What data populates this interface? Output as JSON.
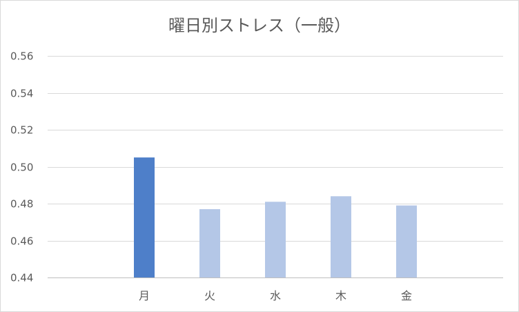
{
  "chart_data": {
    "type": "bar",
    "title": "曜日別ストレス（一般）",
    "xlabel": "",
    "ylabel": "",
    "categories": [
      "月",
      "火",
      "水",
      "木",
      "金"
    ],
    "values": [
      0.505,
      0.477,
      0.481,
      0.484,
      0.479
    ],
    "ylim": [
      0.44,
      0.56
    ],
    "yticks": [
      "0.56",
      "0.54",
      "0.52",
      "0.50",
      "0.48",
      "0.46",
      "0.44"
    ],
    "grid": true,
    "legend": "none",
    "colors": {
      "highlight": "#4e7fc9",
      "bar": "#b4c7e7",
      "grid": "#d9d9d9",
      "axis": "#bfbfbf",
      "text": "#595959"
    },
    "highlight_index": 0
  }
}
